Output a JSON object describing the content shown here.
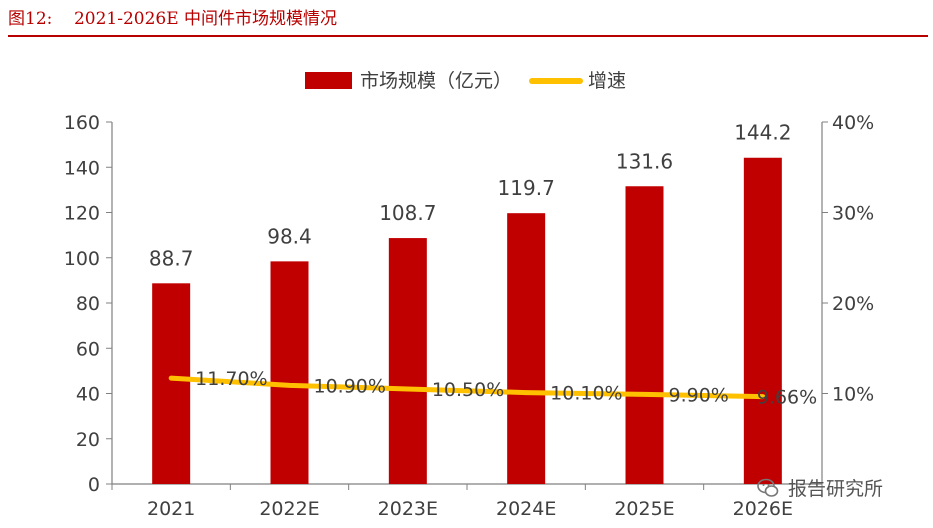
{
  "figure": {
    "title": "图12:    2021-2026E 中间件市场规模情况",
    "colors": {
      "bar": "#c00000",
      "line": "#ffc000",
      "title": "#b80000",
      "axis": "#808080",
      "text": "#404040"
    }
  },
  "watermark": {
    "text": "报告研究所",
    "icon": "wechat-logo-icon"
  },
  "chart_data": {
    "type": "bar",
    "categories": [
      "2021",
      "2022E",
      "2023E",
      "2024E",
      "2025E",
      "2026E"
    ],
    "series": [
      {
        "name": "市场规模（亿元）",
        "type": "bar",
        "axis": "left",
        "values": [
          88.7,
          98.4,
          108.7,
          119.7,
          131.6,
          144.2
        ],
        "labels": [
          "88.7",
          "98.4",
          "108.7",
          "119.7",
          "131.6",
          "144.2"
        ]
      },
      {
        "name": "增速",
        "type": "line",
        "axis": "right",
        "values": [
          11.7,
          10.9,
          10.5,
          10.1,
          9.9,
          9.66
        ],
        "labels": [
          "11.70%",
          "10.90%",
          "10.50%",
          "10.10%",
          "9.90%",
          "9.66%"
        ]
      }
    ],
    "y_left": {
      "min": 0,
      "max": 160,
      "ticks": [
        "0",
        "20",
        "40",
        "60",
        "80",
        "100",
        "120",
        "140",
        "160"
      ]
    },
    "y_right": {
      "min": 0,
      "max": 40,
      "ticks": [
        "10%",
        "20%",
        "30%",
        "40%"
      ],
      "tick_values": [
        10,
        20,
        30,
        40
      ]
    },
    "legend": "top-center",
    "grid": false
  }
}
